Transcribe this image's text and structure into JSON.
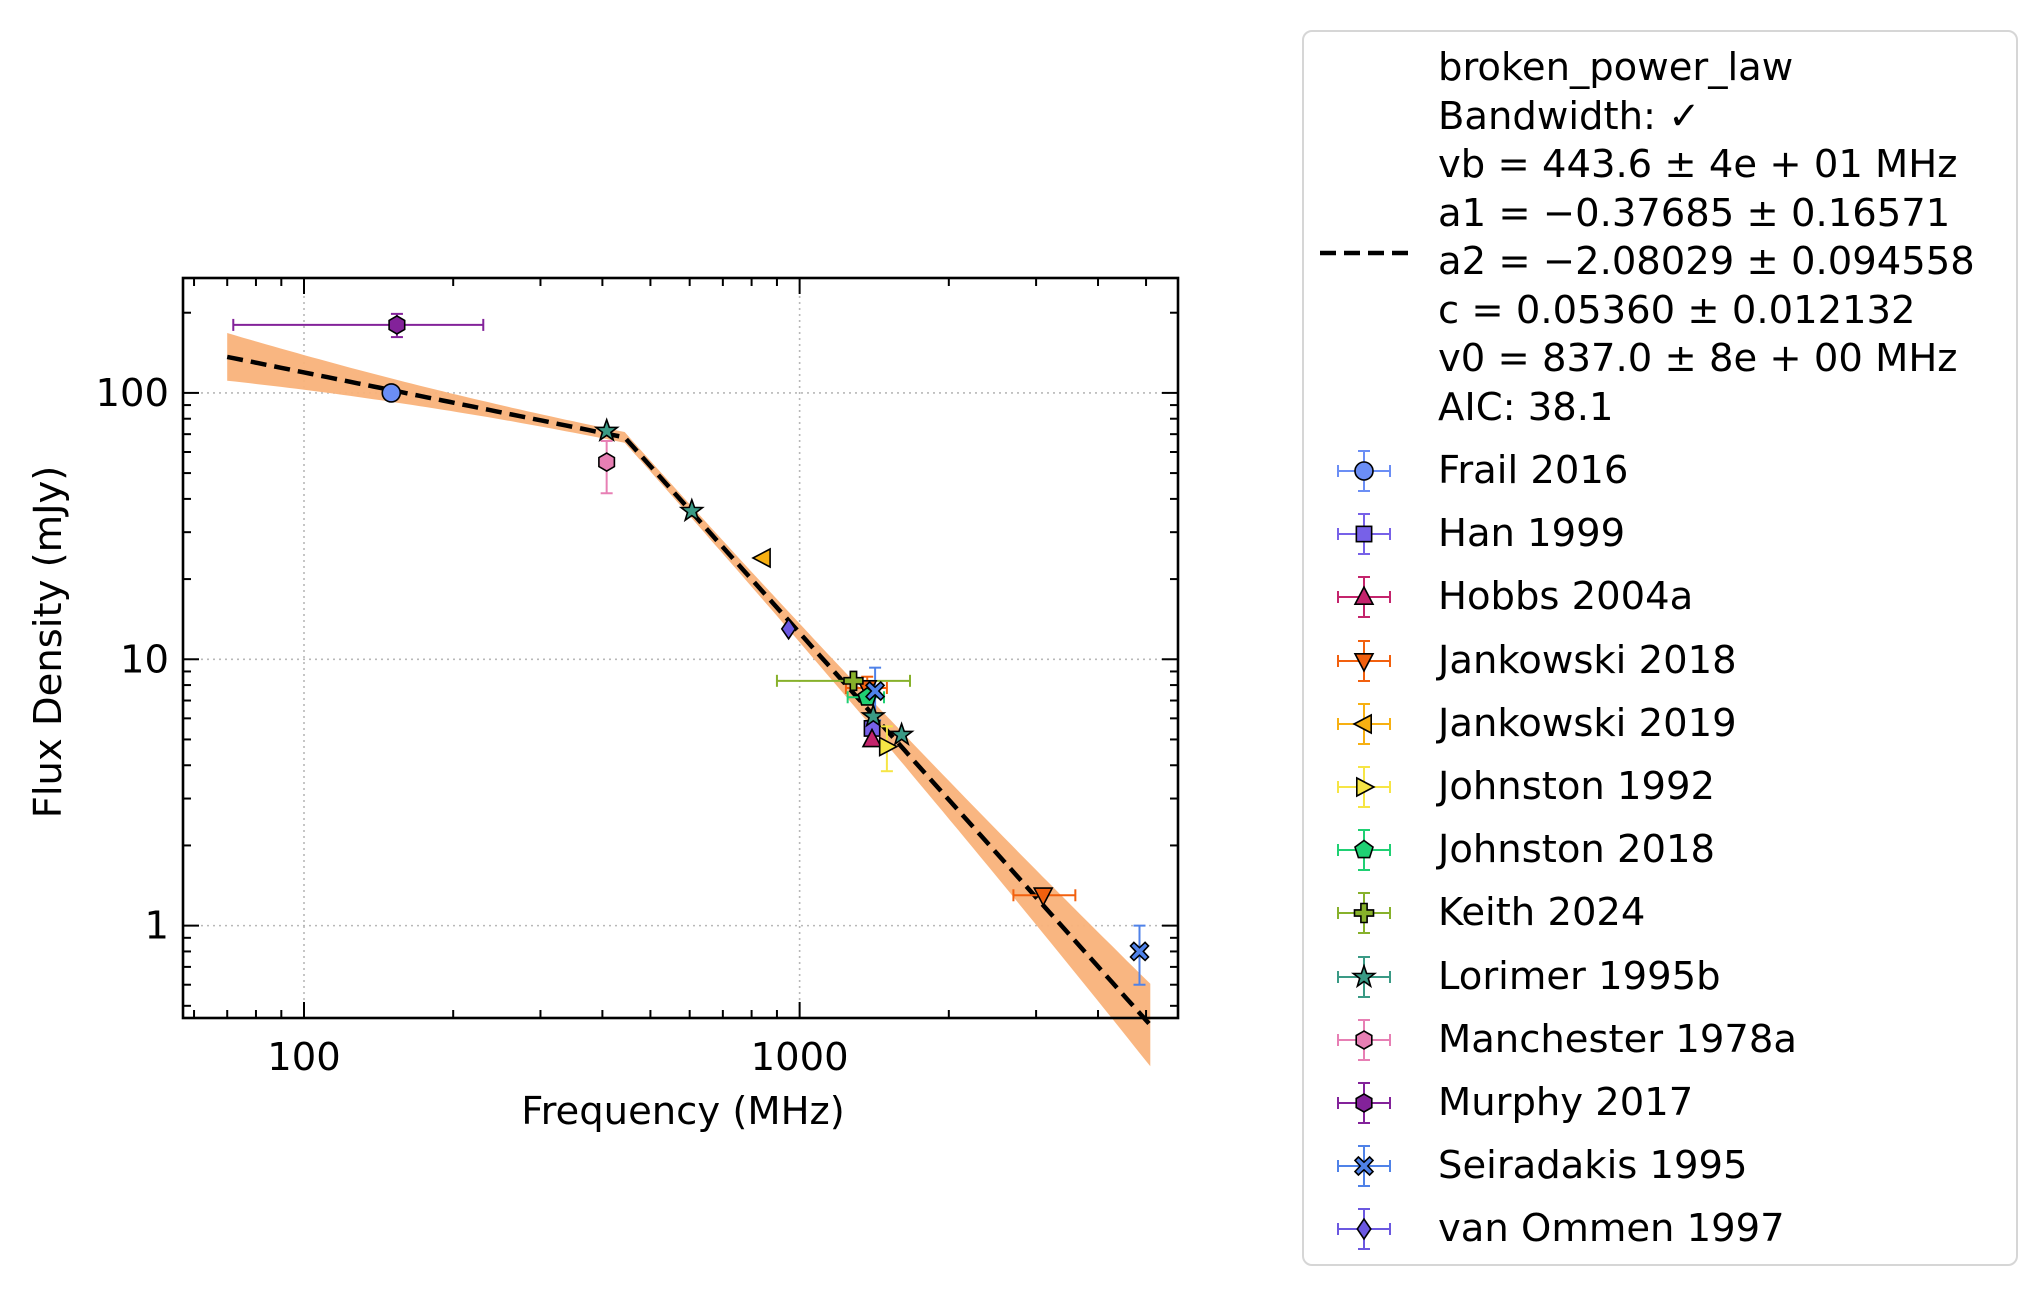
{
  "chart_data": {
    "type": "scatter",
    "xlabel": "Frequency (MHz)",
    "ylabel": "Flux Density (mJy)",
    "x_scale": "log",
    "y_scale": "log",
    "xlim": [
      57,
      5800
    ],
    "ylim": [
      0.45,
      270
    ],
    "x_ticks": [
      100,
      1000
    ],
    "x_tick_labels": [
      "100",
      "1000"
    ],
    "y_ticks": [
      1,
      10,
      100
    ],
    "y_tick_labels": [
      "1",
      "10",
      "100"
    ],
    "grid": true,
    "legend_position": "outside-right",
    "fit": {
      "model": "broken_power_law",
      "color": "#000000",
      "band_color": "#f9b27a",
      "vb": 443.6,
      "a1": -0.37685,
      "a2": -2.08029,
      "c": 0.0536,
      "v0": 837.0,
      "x_range": [
        70,
        5100
      ],
      "legend_lines": [
        "broken_power_law",
        "Bandwidth: ✓",
        "vb = 443.6 ± 4e + 01 MHz",
        "a1 = −0.37685 ± 0.16571",
        "a2 = −2.08029 ± 0.094558",
        "c = 0.05360 ± 0.012132",
        "v0 = 837.0 ± 8e + 00 MHz",
        "AIC: 38.1"
      ]
    },
    "series": [
      {
        "name": "Frail 2016",
        "marker": "circle",
        "color": "#6b8ef5",
        "points": [
          {
            "x": 150,
            "y": 100
          }
        ]
      },
      {
        "name": "Han 1999",
        "marker": "square",
        "color": "#7761e8",
        "points": [
          {
            "x": 1400,
            "y": 5.5
          }
        ]
      },
      {
        "name": "Hobbs 2004a",
        "marker": "triangle-up",
        "color": "#c4246c",
        "points": [
          {
            "x": 1400,
            "y": 5.0
          }
        ]
      },
      {
        "name": "Jankowski 2018",
        "marker": "triangle-down",
        "color": "#f2600e",
        "points": [
          {
            "x": 1369,
            "y": 7.8,
            "xerr": [
              1240,
              1500
            ],
            "yerr": [
              7.0,
              8.6
            ]
          },
          {
            "x": 3100,
            "y": 1.3,
            "xerr": [
              2700,
              3600
            ]
          }
        ]
      },
      {
        "name": "Jankowski 2019",
        "marker": "triangle-left",
        "color": "#f7b012",
        "points": [
          {
            "x": 843,
            "y": 24
          }
        ]
      },
      {
        "name": "Johnston 1992",
        "marker": "triangle-right",
        "color": "#f6e545",
        "points": [
          {
            "x": 1500,
            "y": 4.7,
            "yerr": [
              3.8,
              5.6
            ]
          }
        ]
      },
      {
        "name": "Johnston 2018",
        "marker": "pentagon",
        "color": "#1fd073",
        "points": [
          {
            "x": 1369,
            "y": 7.2,
            "xerr": [
              1250,
              1480
            ]
          }
        ]
      },
      {
        "name": "Keith 2024",
        "marker": "plus",
        "color": "#87b12b",
        "points": [
          {
            "x": 1284,
            "y": 8.3,
            "xerr": [
              900,
              1670
            ]
          }
        ]
      },
      {
        "name": "Lorimer 1995b",
        "marker": "star",
        "color": "#3a9a85",
        "points": [
          {
            "x": 408,
            "y": 72
          },
          {
            "x": 606,
            "y": 36
          },
          {
            "x": 1408,
            "y": 6.1
          },
          {
            "x": 1606,
            "y": 5.2
          }
        ]
      },
      {
        "name": "Manchester 1978a",
        "marker": "hexagon",
        "color": "#e77fb4",
        "points": [
          {
            "x": 408,
            "y": 55,
            "yerr": [
              42,
              66
            ]
          }
        ]
      },
      {
        "name": "Murphy 2017",
        "marker": "hexagon",
        "color": "#83229a",
        "points": [
          {
            "x": 154,
            "y": 180,
            "xerr": [
              72,
              230
            ],
            "yerr": [
              162,
              198
            ]
          }
        ]
      },
      {
        "name": "Seiradakis 1995",
        "marker": "x-filled",
        "color": "#4f82e8",
        "points": [
          {
            "x": 1420,
            "y": 7.6,
            "yerr": [
              5.9,
              9.3
            ]
          },
          {
            "x": 4850,
            "y": 0.8,
            "yerr": [
              0.6,
              1.0
            ]
          }
        ]
      },
      {
        "name": "van Ommen 1997",
        "marker": "diamond",
        "color": "#6b58e0",
        "points": [
          {
            "x": 950,
            "y": 13
          }
        ]
      }
    ]
  }
}
